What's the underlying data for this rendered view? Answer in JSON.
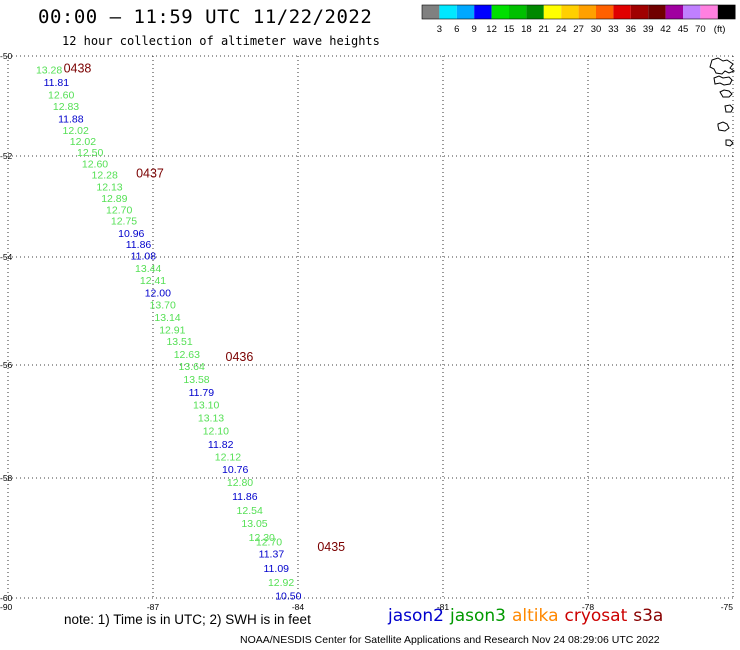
{
  "header": {
    "title": "00:00 – 11:59 UTC 11/22/2022",
    "subtitle": "12 hour collection of altimeter wave heights"
  },
  "colorbar": {
    "unit": "(ft)",
    "ticks": [
      "3",
      "6",
      "9",
      "12",
      "15",
      "18",
      "21",
      "24",
      "27",
      "30",
      "33",
      "36",
      "39",
      "42",
      "45",
      "70"
    ],
    "colors": [
      "#808080",
      "#00e8ff",
      "#00a8ff",
      "#0000ff",
      "#00e000",
      "#00c000",
      "#008800",
      "#ffff00",
      "#ffd000",
      "#ffa000",
      "#ff6000",
      "#e00000",
      "#a00000",
      "#700000",
      "#a000a0",
      "#c080ff",
      "#ff80e0",
      "#000000"
    ]
  },
  "footer": {
    "note": "note: 1) Time is in UTC; 2) SWH is in feet",
    "credit": "NOAA/NESDIS Center for Satellite Applications and Research   Nov 24 08:29:06 UTC 2022"
  },
  "satellites": [
    {
      "name": "jason2",
      "color": "#0000cc"
    },
    {
      "name": "jason3",
      "color": "#009900"
    },
    {
      "name": "altika",
      "color": "#ff8800"
    },
    {
      "name": "cryosat",
      "color": "#cc0000"
    },
    {
      "name": "s3a",
      "color": "#880000"
    }
  ],
  "chart_data": {
    "type": "scatter",
    "title": "00:00 – 11:59 UTC 11/22/2022",
    "subtitle": "12 hour collection of altimeter wave heights",
    "xlabel": "",
    "ylabel": "",
    "xlim": [
      -90,
      -75
    ],
    "ylim": [
      -60,
      -50
    ],
    "grid": true,
    "x_ticks": [
      "-90",
      "-87",
      "-84",
      "-81",
      "-78",
      "-75"
    ],
    "y_ticks": [
      "-50",
      "-52",
      "-54",
      "-56",
      "-58",
      "-60"
    ],
    "time_labels": [
      {
        "text": "0438",
        "lon": -88.85,
        "lat": -50.25
      },
      {
        "text": "0437",
        "lon": -87.35,
        "lat": -52.35
      },
      {
        "text": "0436",
        "lon": -85.5,
        "lat": -55.85
      },
      {
        "text": "0435",
        "lon": -83.6,
        "lat": -59.15
      }
    ],
    "points": [
      {
        "v": "13.28",
        "lon": -89.15,
        "lat": -50.27,
        "c": "#55e055"
      },
      {
        "v": "11.81",
        "lon": -89.0,
        "lat": -50.52,
        "c": "#0000cc"
      },
      {
        "v": "12.60",
        "lon": -88.9,
        "lat": -50.77,
        "c": "#55e055"
      },
      {
        "v": "12.83",
        "lon": -88.8,
        "lat": -51.0,
        "c": "#55e055"
      },
      {
        "v": "11.88",
        "lon": -88.7,
        "lat": -51.25,
        "c": "#0000cc"
      },
      {
        "v": "12.02",
        "lon": -88.6,
        "lat": -51.48,
        "c": "#55e055"
      },
      {
        "v": "12.02",
        "lon": -88.45,
        "lat": -51.7,
        "c": "#55e055"
      },
      {
        "v": "12.50",
        "lon": -88.3,
        "lat": -51.92,
        "c": "#55e055"
      },
      {
        "v": "12.60",
        "lon": -88.2,
        "lat": -52.15,
        "c": "#55e055"
      },
      {
        "v": "12.28",
        "lon": -88.0,
        "lat": -52.37,
        "c": "#55e055"
      },
      {
        "v": "12.13",
        "lon": -87.9,
        "lat": -52.6,
        "c": "#55e055"
      },
      {
        "v": "12.89",
        "lon": -87.8,
        "lat": -52.83,
        "c": "#55e055"
      },
      {
        "v": "12.70",
        "lon": -87.7,
        "lat": -53.06,
        "c": "#55e055"
      },
      {
        "v": "12.75",
        "lon": -87.6,
        "lat": -53.28,
        "c": "#55e055"
      },
      {
        "v": "10.96",
        "lon": -87.45,
        "lat": -53.52,
        "c": "#0000cc"
      },
      {
        "v": "11.86",
        "lon": -87.3,
        "lat": -53.74,
        "c": "#0000cc"
      },
      {
        "v": "11.08",
        "lon": -87.2,
        "lat": -53.97,
        "c": "#0000cc"
      },
      {
        "v": "13.44",
        "lon": -87.1,
        "lat": -54.2,
        "c": "#55e055"
      },
      {
        "v": "12.41",
        "lon": -87.0,
        "lat": -54.43,
        "c": "#55e055"
      },
      {
        "v": "12.00",
        "lon": -86.9,
        "lat": -54.66,
        "c": "#0000cc"
      },
      {
        "v": "13.70",
        "lon": -86.8,
        "lat": -54.88,
        "c": "#55e055"
      },
      {
        "v": "13.14",
        "lon": -86.7,
        "lat": -55.11,
        "c": "#55e055"
      },
      {
        "v": "12.91",
        "lon": -86.6,
        "lat": -55.34,
        "c": "#55e055"
      },
      {
        "v": "13.51",
        "lon": -86.45,
        "lat": -55.56,
        "c": "#55e055"
      },
      {
        "v": "12.63",
        "lon": -86.3,
        "lat": -55.8,
        "c": "#55e055"
      },
      {
        "v": "13.64",
        "lon": -86.2,
        "lat": -56.02,
        "c": "#55e055"
      },
      {
        "v": "13.58",
        "lon": -86.1,
        "lat": -56.25,
        "c": "#55e055"
      },
      {
        "v": "11.79",
        "lon": -86.0,
        "lat": -56.48,
        "c": "#0000cc"
      },
      {
        "v": "13.10",
        "lon": -85.9,
        "lat": -56.7,
        "c": "#55e055"
      },
      {
        "v": "13.13",
        "lon": -85.8,
        "lat": -56.93,
        "c": "#55e055"
      },
      {
        "v": "12.10",
        "lon": -85.7,
        "lat": -57.16,
        "c": "#55e055"
      },
      {
        "v": "11.82",
        "lon": -85.6,
        "lat": -57.4,
        "c": "#0000cc"
      },
      {
        "v": "12.12",
        "lon": -85.45,
        "lat": -57.62,
        "c": "#55e055"
      },
      {
        "v": "10.76",
        "lon": -85.3,
        "lat": -57.84,
        "c": "#0000cc"
      },
      {
        "v": "12.80",
        "lon": -85.2,
        "lat": -58.07,
        "c": "#55e055"
      },
      {
        "v": "11.86",
        "lon": -85.1,
        "lat": -58.3,
        "c": "#0000cc"
      },
      {
        "v": "12.54",
        "lon": -85.0,
        "lat": -58.53,
        "c": "#55e055"
      },
      {
        "v": "13.05",
        "lon": -84.9,
        "lat": -58.75,
        "c": "#55e055"
      },
      {
        "v": "12.30",
        "lon": -84.75,
        "lat": -58.98,
        "c": "#55e055"
      },
      {
        "v": "12.70",
        "lon": -84.6,
        "lat": -59.06,
        "c": "#55e055"
      },
      {
        "v": "11.37",
        "lon": -84.55,
        "lat": -59.26,
        "c": "#0000cc"
      },
      {
        "v": "11.09",
        "lon": -84.45,
        "lat": -59.5,
        "c": "#0000cc"
      },
      {
        "v": "12.92",
        "lon": -84.35,
        "lat": -59.73,
        "c": "#55e055"
      },
      {
        "v": "10.50",
        "lon": -84.2,
        "lat": -59.96,
        "c": "#0000cc"
      }
    ]
  }
}
